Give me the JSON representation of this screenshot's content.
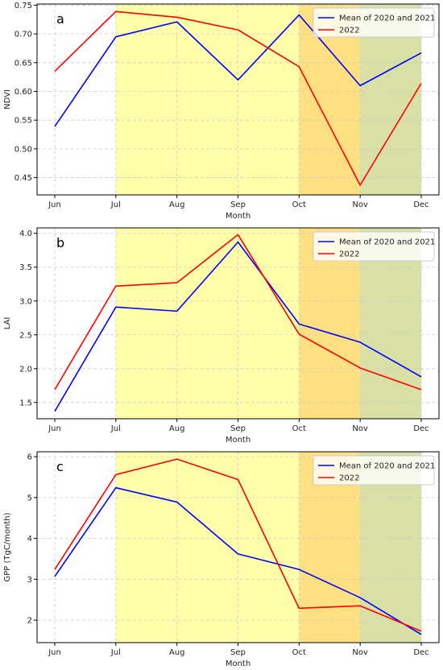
{
  "chart_data": [
    {
      "type": "line",
      "panel_label": "a",
      "xlabel": "Month",
      "ylabel": "NDVI",
      "categories": [
        "Jun",
        "Jul",
        "Aug",
        "Sep",
        "Oct",
        "Nov",
        "Dec"
      ],
      "ylim": [
        0.42,
        0.752
      ],
      "yticks": [
        "0.45",
        "0.50",
        "0.55",
        "0.60",
        "0.65",
        "0.70",
        "0.75"
      ],
      "grid": true,
      "legend_position": "top-right",
      "shaded_regions": [
        {
          "from": "Jul",
          "to": "Oct",
          "color": "#ffffaa"
        },
        {
          "from": "Oct",
          "to": "Nov",
          "color": "#ffe080"
        },
        {
          "from": "Nov",
          "to": "Dec",
          "color": "#d9e0a6"
        }
      ],
      "series": [
        {
          "name": "Mean of 2020 and 2021",
          "color": "#0000ff",
          "values": [
            0.539,
            0.695,
            0.721,
            0.62,
            0.733,
            0.61,
            0.667
          ]
        },
        {
          "name": "2022",
          "color": "#ff0000",
          "values": [
            0.635,
            0.739,
            0.729,
            0.707,
            0.643,
            0.437,
            0.614
          ]
        }
      ]
    },
    {
      "type": "line",
      "panel_label": "b",
      "xlabel": "Month",
      "ylabel": "LAI",
      "categories": [
        "Jun",
        "Jul",
        "Aug",
        "Sep",
        "Oct",
        "Nov",
        "Dec"
      ],
      "ylim": [
        1.26,
        4.08
      ],
      "yticks": [
        "1.5",
        "2.0",
        "2.5",
        "3.0",
        "3.5",
        "4.0"
      ],
      "grid": true,
      "legend_position": "top-right",
      "shaded_regions": [
        {
          "from": "Jul",
          "to": "Oct",
          "color": "#ffffaa"
        },
        {
          "from": "Oct",
          "to": "Nov",
          "color": "#ffe080"
        },
        {
          "from": "Nov",
          "to": "Dec",
          "color": "#d9e0a6"
        }
      ],
      "series": [
        {
          "name": "Mean of 2020 and 2021",
          "color": "#0000ff",
          "values": [
            1.37,
            2.91,
            2.85,
            3.87,
            2.66,
            2.39,
            1.88
          ]
        },
        {
          "name": "2022",
          "color": "#ff0000",
          "values": [
            1.69,
            3.22,
            3.27,
            3.98,
            2.51,
            2.01,
            1.69
          ]
        }
      ]
    },
    {
      "type": "line",
      "panel_label": "c",
      "xlabel": "Month",
      "ylabel": "GPP (TgC/month)",
      "categories": [
        "Jun",
        "Jul",
        "Aug",
        "Sep",
        "Oct",
        "Nov",
        "Dec"
      ],
      "ylim": [
        1.45,
        6.12
      ],
      "yticks": [
        "2",
        "3",
        "4",
        "5",
        "6"
      ],
      "grid": true,
      "legend_position": "top-right",
      "shaded_regions": [
        {
          "from": "Jul",
          "to": "Oct",
          "color": "#ffffaa"
        },
        {
          "from": "Oct",
          "to": "Nov",
          "color": "#ffe080"
        },
        {
          "from": "Nov",
          "to": "Dec",
          "color": "#d9e0a6"
        }
      ],
      "series": [
        {
          "name": "Mean of 2020 and 2021",
          "color": "#0000ff",
          "values": [
            3.07,
            5.24,
            4.89,
            3.62,
            3.24,
            2.55,
            1.65
          ]
        },
        {
          "name": "2022",
          "color": "#ff0000",
          "values": [
            3.24,
            5.56,
            5.94,
            5.44,
            2.29,
            2.35,
            1.73
          ]
        }
      ]
    }
  ]
}
